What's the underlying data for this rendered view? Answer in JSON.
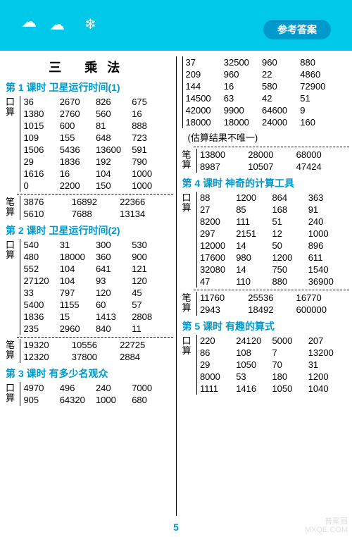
{
  "header": {
    "badge": "参考答案"
  },
  "unit_title": "三  乘法",
  "page_number": "5",
  "watermark_top": "普案圈",
  "watermark_bottom": "MXQE.COM",
  "left": {
    "l1": {
      "title": "第 1 课时  卫星运行时间(1)",
      "kousuan_label": "口算",
      "kousuan": [
        [
          "36",
          "2670",
          "826",
          "675"
        ],
        [
          "1380",
          "2760",
          "560",
          "16"
        ],
        [
          "1015",
          "600",
          "81",
          "888"
        ],
        [
          "109",
          "155",
          "648",
          "723"
        ],
        [
          "1506",
          "5436",
          "13600",
          "591"
        ],
        [
          "29",
          "1836",
          "192",
          "790"
        ],
        [
          "1616",
          "16",
          "104",
          "1000"
        ],
        [
          "0",
          "2200",
          "150",
          "1000"
        ]
      ],
      "bisuan_label": "笔算",
      "bisuan": [
        [
          "3876",
          "16892",
          "22366"
        ],
        [
          "5610",
          "7688",
          "13134"
        ]
      ]
    },
    "l2": {
      "title": "第 2 课时  卫星运行时间(2)",
      "kousuan_label": "口算",
      "kousuan": [
        [
          "540",
          "31",
          "300",
          "530"
        ],
        [
          "480",
          "18000",
          "360",
          "900"
        ],
        [
          "552",
          "104",
          "641",
          "121"
        ],
        [
          "27120",
          "104",
          "93",
          "120"
        ],
        [
          "33",
          "797",
          "120",
          "45"
        ],
        [
          "5400",
          "1155",
          "60",
          "57"
        ],
        [
          "1836",
          "15",
          "1413",
          "2808"
        ],
        [
          "235",
          "2960",
          "840",
          "11"
        ]
      ],
      "bisuan_label": "笔算",
      "bisuan": [
        [
          "19320",
          "10556",
          "22725"
        ],
        [
          "12320",
          "37800",
          "2884"
        ]
      ]
    },
    "l3": {
      "title": "第 3 课时  有多少名观众",
      "kousuan_label": "口算",
      "kousuan": [
        [
          "4970",
          "496",
          "240",
          "7000"
        ],
        [
          "905",
          "64320",
          "1000",
          "680"
        ]
      ]
    }
  },
  "right": {
    "l3cont": {
      "kousuan": [
        [
          "37",
          "32500",
          "960",
          "880"
        ],
        [
          "209",
          "960",
          "22",
          "4860"
        ],
        [
          "144",
          "16",
          "580",
          "72900"
        ],
        [
          "14500",
          "63",
          "42",
          "51"
        ],
        [
          "42000",
          "9900",
          "64600",
          "9"
        ],
        [
          "18000",
          "18000",
          "24000",
          "160"
        ]
      ],
      "note": "(估算结果不唯一)",
      "bisuan_label": "笔算",
      "bisuan": [
        [
          "13800",
          "28000",
          "68000"
        ],
        [
          "8987",
          "10507",
          "47424"
        ]
      ]
    },
    "l4": {
      "title": "第 4 课时  神奇的计算工具",
      "kousuan_label": "口算",
      "kousuan": [
        [
          "88",
          "1200",
          "864",
          "363"
        ],
        [
          "27",
          "85",
          "168",
          "91"
        ],
        [
          "8200",
          "111",
          "51",
          "240"
        ],
        [
          "297",
          "2151",
          "12",
          "1000"
        ],
        [
          "12000",
          "14",
          "50",
          "896"
        ],
        [
          "17600",
          "980",
          "1200",
          "611"
        ],
        [
          "32080",
          "14",
          "750",
          "1540"
        ],
        [
          "47",
          "110",
          "880",
          "36900"
        ]
      ],
      "bisuan_label": "笔算",
      "bisuan": [
        [
          "11760",
          "25536",
          "16770"
        ],
        [
          "2943",
          "18492",
          "600000"
        ]
      ]
    },
    "l5": {
      "title": "第 5 课时  有趣的算式",
      "kousuan_label": "口算",
      "kousuan": [
        [
          "220",
          "24120",
          "5000",
          "207"
        ],
        [
          "86",
          "108",
          "7",
          "13200"
        ],
        [
          "29",
          "1050",
          "70",
          "31"
        ],
        [
          "8000",
          "53",
          "180",
          "1200"
        ],
        [
          "1111",
          "1416",
          "1050",
          "1040"
        ]
      ]
    }
  }
}
